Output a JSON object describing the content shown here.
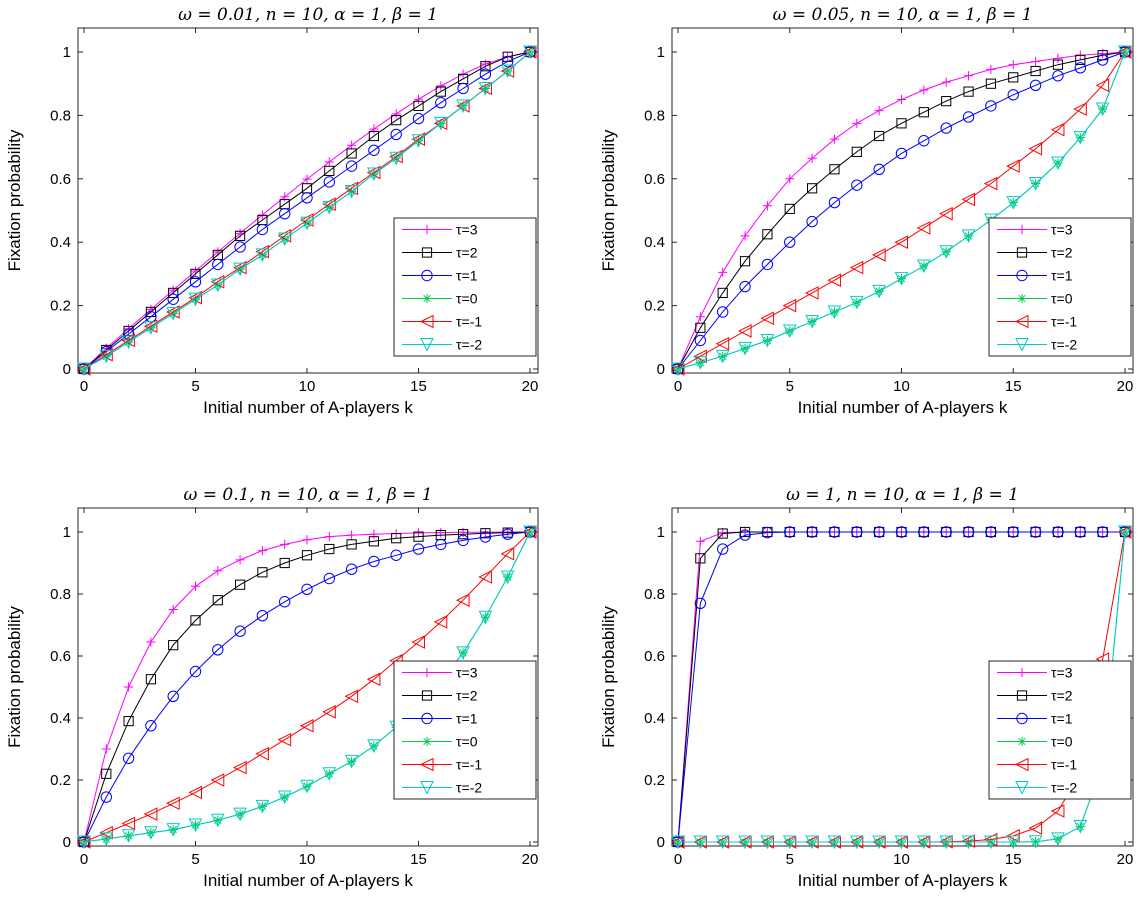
{
  "figure": {
    "charts": [
      {
        "title": "ω = 0.01, n = 10, α = 1, β = 1"
      },
      {
        "title": "ω = 0.05, n = 10, α = 1, β = 1"
      },
      {
        "title": "ω = 0.1, n = 10, α = 1, β = 1"
      },
      {
        "title": "ω = 1, n = 10, α = 1, β = 1"
      }
    ]
  },
  "chart_data": [
    {
      "type": "line",
      "title": "ω = 0.01, n = 10, α = 1, β = 1",
      "xlabel": "Initial number of A-players k",
      "ylabel": "Fixation probability",
      "xlim": [
        0,
        20
      ],
      "ylim": [
        0,
        1
      ],
      "xticks": [
        "0",
        "5",
        "10",
        "15",
        "20"
      ],
      "yticks": [
        "0",
        "0.2",
        "0.4",
        "0.6",
        "0.8",
        "1"
      ],
      "grid": false,
      "legend_position": "lower-right",
      "x": [
        0,
        1,
        2,
        3,
        4,
        5,
        6,
        7,
        8,
        9,
        10,
        11,
        12,
        13,
        14,
        15,
        16,
        17,
        18,
        19,
        20
      ],
      "series": [
        {
          "name": "τ=3",
          "color": "#ff00ff",
          "marker": "plus",
          "values": [
            0,
            0.065,
            0.127,
            0.188,
            0.249,
            0.309,
            0.369,
            0.428,
            0.486,
            0.543,
            0.599,
            0.653,
            0.706,
            0.757,
            0.805,
            0.851,
            0.893,
            0.93,
            0.962,
            0.985,
            1
          ]
        },
        {
          "name": "τ=2",
          "color": "#000000",
          "marker": "square",
          "values": [
            0,
            0.06,
            0.12,
            0.18,
            0.24,
            0.3,
            0.36,
            0.42,
            0.47,
            0.52,
            0.57,
            0.625,
            0.68,
            0.735,
            0.785,
            0.83,
            0.875,
            0.915,
            0.955,
            0.985,
            1
          ]
        },
        {
          "name": "τ=1",
          "color": "#0000ff",
          "marker": "circle",
          "values": [
            0,
            0.055,
            0.11,
            0.165,
            0.22,
            0.275,
            0.33,
            0.385,
            0.44,
            0.49,
            0.54,
            0.59,
            0.64,
            0.69,
            0.74,
            0.79,
            0.84,
            0.885,
            0.93,
            0.97,
            1
          ]
        },
        {
          "name": "τ=0",
          "color": "#00cc44",
          "marker": "star",
          "values": [
            0,
            0.04,
            0.085,
            0.13,
            0.175,
            0.22,
            0.265,
            0.315,
            0.36,
            0.41,
            0.46,
            0.51,
            0.56,
            0.615,
            0.665,
            0.72,
            0.775,
            0.83,
            0.885,
            0.94,
            1
          ]
        },
        {
          "name": "τ=-1",
          "color": "#ff0000",
          "marker": "triangle-left",
          "values": [
            0,
            0.045,
            0.09,
            0.135,
            0.18,
            0.225,
            0.275,
            0.32,
            0.37,
            0.42,
            0.47,
            0.52,
            0.57,
            0.62,
            0.67,
            0.725,
            0.775,
            0.83,
            0.885,
            0.94,
            1
          ]
        },
        {
          "name": "τ=-2",
          "color": "#00cccc",
          "marker": "triangle-down",
          "values": [
            0,
            0.04,
            0.085,
            0.13,
            0.175,
            0.22,
            0.265,
            0.315,
            0.36,
            0.41,
            0.46,
            0.51,
            0.56,
            0.615,
            0.665,
            0.72,
            0.775,
            0.83,
            0.885,
            0.94,
            1
          ]
        }
      ]
    },
    {
      "type": "line",
      "title": "ω = 0.05, n = 10, α = 1, β = 1",
      "xlabel": "Initial number of A-players k",
      "ylabel": "Fixation probability",
      "xlim": [
        0,
        20
      ],
      "ylim": [
        0,
        1
      ],
      "xticks": [
        "0",
        "5",
        "10",
        "15",
        "20"
      ],
      "yticks": [
        "0",
        "0.2",
        "0.4",
        "0.6",
        "0.8",
        "1"
      ],
      "grid": false,
      "legend_position": "lower-right",
      "x": [
        0,
        1,
        2,
        3,
        4,
        5,
        6,
        7,
        8,
        9,
        10,
        11,
        12,
        13,
        14,
        15,
        16,
        17,
        18,
        19,
        20
      ],
      "series": [
        {
          "name": "τ=3",
          "color": "#ff00ff",
          "marker": "plus",
          "values": [
            0,
            0.165,
            0.305,
            0.42,
            0.515,
            0.6,
            0.665,
            0.725,
            0.775,
            0.815,
            0.85,
            0.88,
            0.905,
            0.925,
            0.945,
            0.96,
            0.97,
            0.98,
            0.99,
            0.995,
            1
          ]
        },
        {
          "name": "τ=2",
          "color": "#000000",
          "marker": "square",
          "values": [
            0,
            0.13,
            0.24,
            0.34,
            0.425,
            0.505,
            0.57,
            0.63,
            0.685,
            0.735,
            0.775,
            0.81,
            0.845,
            0.875,
            0.9,
            0.92,
            0.94,
            0.96,
            0.975,
            0.99,
            1
          ]
        },
        {
          "name": "τ=1",
          "color": "#0000ff",
          "marker": "circle",
          "values": [
            0,
            0.09,
            0.18,
            0.26,
            0.33,
            0.4,
            0.465,
            0.525,
            0.58,
            0.63,
            0.68,
            0.72,
            0.76,
            0.795,
            0.83,
            0.865,
            0.895,
            0.925,
            0.95,
            0.975,
            1
          ]
        },
        {
          "name": "τ=0",
          "color": "#00cc44",
          "marker": "star",
          "values": [
            0,
            0.02,
            0.04,
            0.065,
            0.09,
            0.12,
            0.15,
            0.18,
            0.21,
            0.245,
            0.285,
            0.325,
            0.37,
            0.42,
            0.47,
            0.525,
            0.585,
            0.65,
            0.73,
            0.82,
            1
          ]
        },
        {
          "name": "τ=-1",
          "color": "#ff0000",
          "marker": "triangle-left",
          "values": [
            0,
            0.04,
            0.08,
            0.12,
            0.16,
            0.2,
            0.24,
            0.28,
            0.32,
            0.36,
            0.4,
            0.445,
            0.49,
            0.535,
            0.585,
            0.64,
            0.695,
            0.755,
            0.82,
            0.895,
            1
          ]
        },
        {
          "name": "τ=-2",
          "color": "#00cccc",
          "marker": "triangle-down",
          "values": [
            0,
            0.02,
            0.04,
            0.065,
            0.09,
            0.12,
            0.15,
            0.18,
            0.21,
            0.245,
            0.285,
            0.325,
            0.37,
            0.42,
            0.47,
            0.525,
            0.585,
            0.65,
            0.73,
            0.82,
            1
          ]
        }
      ]
    },
    {
      "type": "line",
      "title": "ω = 0.1, n = 10, α = 1, β = 1",
      "xlabel": "Initial number of A-players k",
      "ylabel": "Fixation probability",
      "xlim": [
        0,
        20
      ],
      "ylim": [
        0,
        1
      ],
      "xticks": [
        "0",
        "5",
        "10",
        "15",
        "20"
      ],
      "yticks": [
        "0",
        "0.2",
        "0.4",
        "0.6",
        "0.8",
        "1"
      ],
      "grid": false,
      "legend_position": "lower-right",
      "x": [
        0,
        1,
        2,
        3,
        4,
        5,
        6,
        7,
        8,
        9,
        10,
        11,
        12,
        13,
        14,
        15,
        16,
        17,
        18,
        19,
        20
      ],
      "series": [
        {
          "name": "τ=3",
          "color": "#ff00ff",
          "marker": "plus",
          "values": [
            0,
            0.3,
            0.5,
            0.645,
            0.75,
            0.825,
            0.875,
            0.91,
            0.94,
            0.96,
            0.975,
            0.985,
            0.99,
            0.993,
            0.995,
            0.997,
            0.998,
            0.999,
            0.999,
            1,
            1
          ]
        },
        {
          "name": "τ=2",
          "color": "#000000",
          "marker": "square",
          "values": [
            0,
            0.22,
            0.39,
            0.525,
            0.635,
            0.715,
            0.78,
            0.83,
            0.87,
            0.9,
            0.925,
            0.945,
            0.96,
            0.97,
            0.98,
            0.985,
            0.99,
            0.993,
            0.996,
            0.998,
            1
          ]
        },
        {
          "name": "τ=1",
          "color": "#0000ff",
          "marker": "circle",
          "values": [
            0,
            0.145,
            0.27,
            0.375,
            0.47,
            0.55,
            0.62,
            0.68,
            0.73,
            0.775,
            0.815,
            0.85,
            0.88,
            0.905,
            0.925,
            0.945,
            0.96,
            0.973,
            0.984,
            0.993,
            1
          ]
        },
        {
          "name": "τ=0",
          "color": "#00cc44",
          "marker": "star",
          "values": [
            0,
            0.01,
            0.02,
            0.03,
            0.04,
            0.055,
            0.07,
            0.09,
            0.115,
            0.145,
            0.18,
            0.22,
            0.26,
            0.31,
            0.37,
            0.435,
            0.52,
            0.61,
            0.725,
            0.855,
            1
          ]
        },
        {
          "name": "τ=-1",
          "color": "#ff0000",
          "marker": "triangle-left",
          "values": [
            0,
            0.03,
            0.06,
            0.09,
            0.125,
            0.16,
            0.2,
            0.24,
            0.285,
            0.33,
            0.375,
            0.42,
            0.47,
            0.525,
            0.585,
            0.645,
            0.71,
            0.78,
            0.855,
            0.93,
            1
          ]
        },
        {
          "name": "τ=-2",
          "color": "#00cccc",
          "marker": "triangle-down",
          "values": [
            0,
            0.01,
            0.02,
            0.03,
            0.04,
            0.055,
            0.07,
            0.09,
            0.115,
            0.145,
            0.18,
            0.22,
            0.26,
            0.31,
            0.37,
            0.435,
            0.52,
            0.61,
            0.725,
            0.855,
            1
          ]
        }
      ]
    },
    {
      "type": "line",
      "title": "ω = 1, n = 10, α = 1, β = 1",
      "xlabel": "Initial number of A-players k",
      "ylabel": "Fixation probability",
      "xlim": [
        0,
        20
      ],
      "ylim": [
        0,
        1
      ],
      "xticks": [
        "0",
        "5",
        "10",
        "15",
        "20"
      ],
      "yticks": [
        "0",
        "0.2",
        "0.4",
        "0.6",
        "0.8",
        "1"
      ],
      "grid": false,
      "legend_position": "lower-right",
      "x": [
        0,
        1,
        2,
        3,
        4,
        5,
        6,
        7,
        8,
        9,
        10,
        11,
        12,
        13,
        14,
        15,
        16,
        17,
        18,
        19,
        20
      ],
      "series": [
        {
          "name": "τ=3",
          "color": "#ff00ff",
          "marker": "plus",
          "values": [
            0,
            0.97,
            0.998,
            1,
            1,
            1,
            1,
            1,
            1,
            1,
            1,
            1,
            1,
            1,
            1,
            1,
            1,
            1,
            1,
            1,
            1
          ]
        },
        {
          "name": "τ=2",
          "color": "#000000",
          "marker": "square",
          "values": [
            0,
            0.915,
            0.995,
            1,
            1,
            1,
            1,
            1,
            1,
            1,
            1,
            1,
            1,
            1,
            1,
            1,
            1,
            1,
            1,
            1,
            1
          ]
        },
        {
          "name": "τ=1",
          "color": "#0000ff",
          "marker": "circle",
          "values": [
            0,
            0.77,
            0.945,
            0.99,
            0.998,
            1,
            1,
            1,
            1,
            1,
            1,
            1,
            1,
            1,
            1,
            1,
            1,
            1,
            1,
            1,
            1
          ]
        },
        {
          "name": "τ=0",
          "color": "#00cc44",
          "marker": "star",
          "values": [
            0,
            0,
            0,
            0,
            0,
            0,
            0,
            0,
            0,
            0,
            0,
            0,
            0,
            0,
            0,
            0,
            0.001,
            0.01,
            0.05,
            0.25,
            1
          ]
        },
        {
          "name": "τ=-1",
          "color": "#ff0000",
          "marker": "triangle-left",
          "values": [
            0,
            0,
            0,
            0,
            0,
            0,
            0,
            0,
            0,
            0,
            0,
            0,
            0.001,
            0.003,
            0.008,
            0.02,
            0.045,
            0.1,
            0.22,
            0.59,
            1
          ]
        },
        {
          "name": "τ=-2",
          "color": "#00cccc",
          "marker": "triangle-down",
          "values": [
            0,
            0,
            0,
            0,
            0,
            0,
            0,
            0,
            0,
            0,
            0,
            0,
            0,
            0,
            0,
            0,
            0.001,
            0.01,
            0.05,
            0.25,
            1
          ]
        }
      ]
    }
  ]
}
